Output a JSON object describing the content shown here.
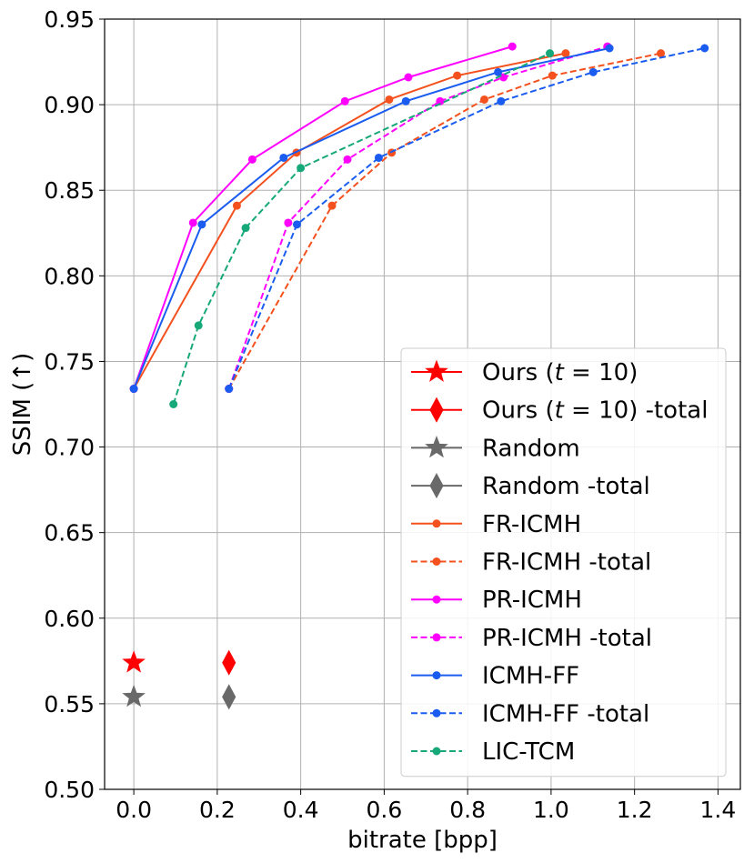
{
  "chart_data": {
    "type": "line",
    "title": "",
    "xlabel": "bitrate [bpp]",
    "ylabel": "SSIM (↑)",
    "xlim": [
      -0.07,
      1.4536
    ],
    "ylim": [
      0.5,
      0.95
    ],
    "xticks": [
      0.0,
      0.2,
      0.4,
      0.6,
      0.8,
      1.0,
      1.2,
      1.4
    ],
    "xtick_labels": [
      "0.0",
      "0.2",
      "0.4",
      "0.6",
      "0.8",
      "1.0",
      "1.2",
      "1.4"
    ],
    "yticks": [
      0.5,
      0.55,
      0.6,
      0.65,
      0.7,
      0.75,
      0.8,
      0.85,
      0.9,
      0.95
    ],
    "ytick_labels": [
      "0.50",
      "0.55",
      "0.60",
      "0.65",
      "0.70",
      "0.75",
      "0.80",
      "0.85",
      "0.90",
      "0.95"
    ],
    "grid": true,
    "legend_position": "lower-right",
    "series": [
      {
        "name": "Ours (t = 10)",
        "legend_main": "Ours (",
        "legend_var": "t",
        "legend_rest": " = 10)",
        "legend_suffix": "",
        "color": "#ff0000",
        "linestyle": "solid",
        "marker": "star",
        "x": [
          0.0
        ],
        "y": [
          0.574
        ]
      },
      {
        "name": "Ours (t = 10) -total",
        "legend_main": "Ours (",
        "legend_var": "t",
        "legend_rest": " = 10)",
        "legend_suffix": " -total",
        "color": "#ff0000",
        "linestyle": "solid",
        "marker": "diamond",
        "x": [
          0.228
        ],
        "y": [
          0.574
        ]
      },
      {
        "name": "Random",
        "legend_main": "Random",
        "legend_var": "",
        "legend_rest": "",
        "legend_suffix": "",
        "color": "#696969",
        "linestyle": "solid",
        "marker": "star",
        "x": [
          0.0
        ],
        "y": [
          0.554
        ]
      },
      {
        "name": "Random -total",
        "legend_main": "Random -total",
        "legend_var": "",
        "legend_rest": "",
        "legend_suffix": "",
        "color": "#696969",
        "linestyle": "solid",
        "marker": "diamond",
        "x": [
          0.228
        ],
        "y": [
          0.554
        ]
      },
      {
        "name": "FR-ICMH",
        "legend_main": "FR-ICMH",
        "legend_var": "",
        "legend_rest": "",
        "legend_suffix": "",
        "color": "#f4511e",
        "linestyle": "solid",
        "marker": "circle",
        "x": [
          0.0,
          0.247,
          0.39,
          0.612,
          0.775,
          1.035
        ],
        "y": [
          0.734,
          0.841,
          0.872,
          0.903,
          0.917,
          0.93
        ]
      },
      {
        "name": "FR-ICMH -total",
        "legend_main": "FR-ICMH -total",
        "legend_var": "",
        "legend_rest": "",
        "legend_suffix": "",
        "color": "#f4511e",
        "linestyle": "dashed",
        "marker": "circle",
        "x": [
          0.228,
          0.475,
          0.618,
          0.84,
          1.003,
          1.263
        ],
        "y": [
          0.734,
          0.841,
          0.872,
          0.903,
          0.917,
          0.93
        ]
      },
      {
        "name": "PR-ICMH",
        "legend_main": "PR-ICMH",
        "legend_var": "",
        "legend_rest": "",
        "legend_suffix": "",
        "color": "#ff00ff",
        "linestyle": "solid",
        "marker": "circle",
        "x": [
          0.0,
          0.142,
          0.284,
          0.506,
          0.658,
          0.907
        ],
        "y": [
          0.734,
          0.831,
          0.868,
          0.902,
          0.916,
          0.934
        ]
      },
      {
        "name": "PR-ICMH -total",
        "legend_main": "PR-ICMH -total",
        "legend_var": "",
        "legend_rest": "",
        "legend_suffix": "",
        "color": "#ff00ff",
        "linestyle": "dashed",
        "marker": "circle",
        "x": [
          0.228,
          0.37,
          0.512,
          0.734,
          0.886,
          1.135
        ],
        "y": [
          0.734,
          0.831,
          0.868,
          0.902,
          0.916,
          0.934
        ]
      },
      {
        "name": "ICMH-FF",
        "legend_main": "ICMH-FF",
        "legend_var": "",
        "legend_rest": "",
        "legend_suffix": "",
        "color": "#1a5cf0",
        "linestyle": "solid",
        "marker": "circle",
        "x": [
          0.0,
          0.163,
          0.359,
          0.652,
          0.873,
          1.14
        ],
        "y": [
          0.734,
          0.83,
          0.869,
          0.902,
          0.919,
          0.933
        ]
      },
      {
        "name": "ICMH-FF -total",
        "legend_main": "ICMH-FF -total",
        "legend_var": "",
        "legend_rest": "",
        "legend_suffix": "",
        "color": "#1a5cf0",
        "linestyle": "dashed",
        "marker": "circle",
        "x": [
          0.228,
          0.391,
          0.587,
          0.88,
          1.101,
          1.368
        ],
        "y": [
          0.734,
          0.83,
          0.869,
          0.902,
          0.919,
          0.933
        ]
      },
      {
        "name": "LIC-TCM",
        "legend_main": "LIC-TCM",
        "legend_var": "",
        "legend_rest": "",
        "legend_suffix": "",
        "color": "#16a878",
        "linestyle": "dashed",
        "marker": "circle",
        "x": [
          0.095,
          0.155,
          0.268,
          0.4,
          0.997
        ],
        "y": [
          0.725,
          0.771,
          0.828,
          0.863,
          0.93
        ]
      }
    ]
  }
}
